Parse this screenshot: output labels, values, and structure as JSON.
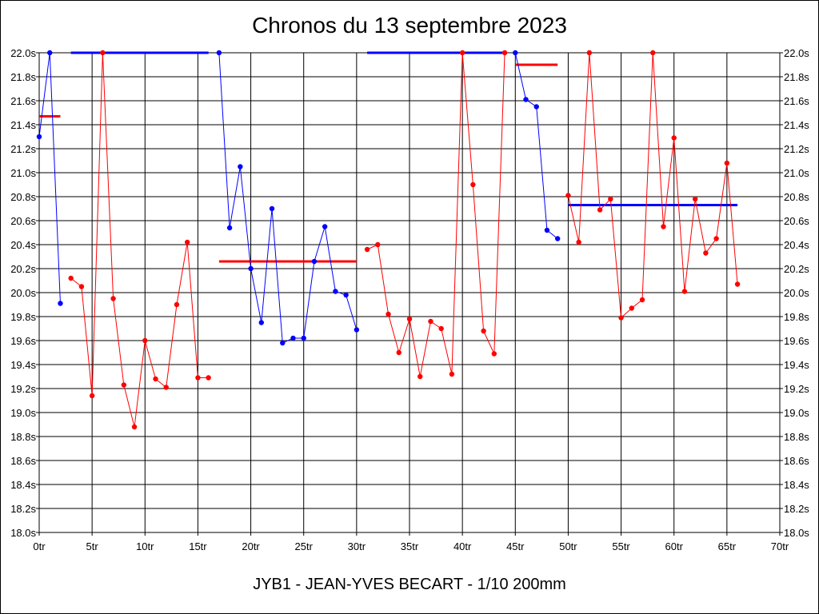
{
  "chart_data": {
    "type": "line",
    "title": "Chronos du 13 septembre 2023",
    "subtitle": "JYB1 - JEAN-YVES BECART - 1/10 200mm",
    "xlim": [
      0,
      70
    ],
    "ylim": [
      18.0,
      22.0
    ],
    "x_tick_labels": [
      "0tr",
      "5tr",
      "10tr",
      "15tr",
      "20tr",
      "25tr",
      "30tr",
      "35tr",
      "40tr",
      "45tr",
      "50tr",
      "55tr",
      "60tr",
      "65tr",
      "70tr"
    ],
    "y_tick_labels": [
      "18.0s",
      "18.2s",
      "18.4s",
      "18.6s",
      "18.8s",
      "19.0s",
      "19.2s",
      "19.4s",
      "19.6s",
      "19.8s",
      "20.0s",
      "20.2s",
      "20.4s",
      "20.6s",
      "20.8s",
      "21.0s",
      "21.2s",
      "21.4s",
      "21.6s",
      "21.8s",
      "22.0s"
    ],
    "grid": true,
    "colors": {
      "blue": "#0000ff",
      "red": "#ff0000"
    },
    "series": [
      {
        "color": "blue",
        "x": [
          0,
          1,
          2
        ],
        "y": [
          21.3,
          22.0,
          19.91
        ]
      },
      {
        "color": "red",
        "x": [
          3,
          4,
          5,
          6,
          7,
          8,
          9,
          10,
          11,
          12,
          13,
          14,
          15,
          16
        ],
        "y": [
          20.12,
          20.05,
          19.14,
          22.0,
          19.95,
          19.23,
          18.88,
          19.6,
          19.28,
          19.21,
          19.9,
          20.42,
          19.29,
          19.29
        ]
      },
      {
        "color": "blue",
        "x": [
          17,
          18,
          19,
          20,
          21,
          22,
          23,
          24,
          25,
          26,
          27,
          28,
          29,
          30
        ],
        "y": [
          22.0,
          20.54,
          21.05,
          20.2,
          19.75,
          20.7,
          19.58,
          19.62,
          19.62,
          20.26,
          20.55,
          20.01,
          19.98,
          19.69
        ]
      },
      {
        "color": "red",
        "x": [
          31,
          32,
          33,
          34,
          35,
          36,
          37,
          38,
          39,
          40,
          41,
          42,
          43,
          44
        ],
        "y": [
          20.36,
          20.4,
          19.82,
          19.5,
          19.78,
          19.3,
          19.76,
          19.7,
          19.32,
          22.0,
          20.9,
          19.68,
          19.49,
          22.0
        ]
      },
      {
        "color": "blue",
        "x": [
          45,
          46,
          47,
          48,
          49
        ],
        "y": [
          22.0,
          21.61,
          21.55,
          20.52,
          20.45
        ]
      },
      {
        "color": "red",
        "x": [
          50,
          51,
          52,
          53,
          54,
          55,
          56,
          57,
          58,
          59,
          60,
          61,
          62,
          63,
          64,
          65,
          66
        ],
        "y": [
          20.81,
          20.42,
          22.0,
          20.69,
          20.78,
          19.79,
          19.87,
          19.94,
          22.0,
          20.55,
          21.29,
          20.01,
          20.78,
          20.33,
          20.45,
          21.08,
          20.07
        ]
      }
    ],
    "averages": [
      {
        "color": "red",
        "x": [
          0,
          2
        ],
        "y": 21.47
      },
      {
        "color": "blue",
        "x": [
          3,
          16
        ],
        "y": 22.0
      },
      {
        "color": "red",
        "x": [
          17,
          30
        ],
        "y": 20.26
      },
      {
        "color": "blue",
        "x": [
          31,
          44
        ],
        "y": 22.0
      },
      {
        "color": "red",
        "x": [
          45,
          49
        ],
        "y": 21.9
      },
      {
        "color": "blue",
        "x": [
          50,
          66
        ],
        "y": 20.73
      }
    ]
  }
}
